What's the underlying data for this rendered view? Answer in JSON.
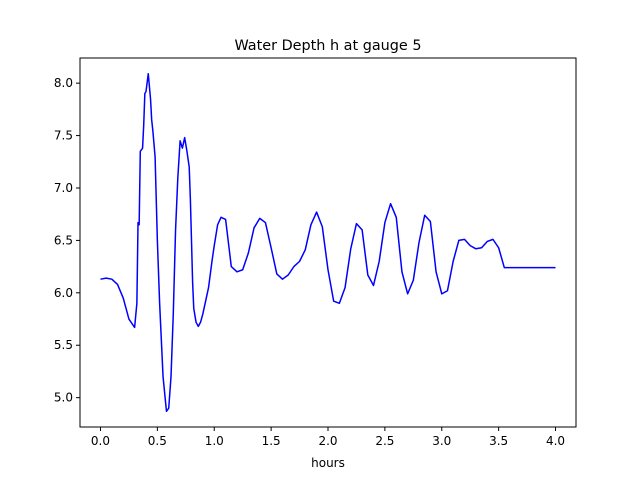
{
  "chart_data": {
    "type": "line",
    "title": "Water Depth h at gauge 5",
    "xlabel": "hours",
    "ylabel": "",
    "xlim": [
      -0.18,
      4.18
    ],
    "ylim": [
      4.72,
      8.24
    ],
    "xticks": [
      0.0,
      0.5,
      1.0,
      1.5,
      2.0,
      2.5,
      3.0,
      3.5,
      4.0
    ],
    "xtick_labels": [
      "0.0",
      "0.5",
      "1.0",
      "1.5",
      "2.0",
      "2.5",
      "3.0",
      "3.5",
      "4.0"
    ],
    "yticks": [
      5.0,
      5.5,
      6.0,
      6.5,
      7.0,
      7.5,
      8.0
    ],
    "ytick_labels": [
      "5.0",
      "5.5",
      "6.0",
      "6.5",
      "7.0",
      "7.5",
      "8.0"
    ],
    "grid": false,
    "line_color": "#0000ff",
    "series": [
      {
        "name": "",
        "x": [
          0.0,
          0.05,
          0.1,
          0.15,
          0.2,
          0.25,
          0.3,
          0.32,
          0.33,
          0.34,
          0.35,
          0.37,
          0.38,
          0.39,
          0.4,
          0.42,
          0.44,
          0.45,
          0.46,
          0.48,
          0.5,
          0.52,
          0.55,
          0.58,
          0.6,
          0.62,
          0.64,
          0.66,
          0.68,
          0.7,
          0.72,
          0.74,
          0.76,
          0.78,
          0.79,
          0.8,
          0.81,
          0.82,
          0.84,
          0.86,
          0.88,
          0.9,
          0.92,
          0.95,
          0.98,
          1.0,
          1.03,
          1.06,
          1.1,
          1.15,
          1.2,
          1.25,
          1.3,
          1.35,
          1.4,
          1.45,
          1.5,
          1.55,
          1.6,
          1.65,
          1.7,
          1.75,
          1.8,
          1.85,
          1.9,
          1.95,
          2.0,
          2.05,
          2.1,
          2.15,
          2.2,
          2.25,
          2.3,
          2.35,
          2.4,
          2.45,
          2.5,
          2.55,
          2.6,
          2.65,
          2.7,
          2.75,
          2.8,
          2.85,
          2.9,
          2.95,
          3.0,
          3.05,
          3.1,
          3.15,
          3.2,
          3.25,
          3.3,
          3.35,
          3.4,
          3.45,
          3.5,
          3.55,
          3.6,
          3.65,
          3.7,
          3.75,
          3.8,
          3.85,
          3.9,
          3.95,
          4.0
        ],
        "y": [
          6.13,
          6.14,
          6.13,
          6.08,
          5.95,
          5.75,
          5.67,
          5.9,
          6.67,
          6.65,
          7.35,
          7.38,
          7.6,
          7.9,
          7.92,
          8.09,
          7.85,
          7.65,
          7.55,
          7.3,
          6.5,
          5.9,
          5.2,
          4.87,
          4.9,
          5.2,
          5.8,
          6.6,
          7.1,
          7.45,
          7.38,
          7.48,
          7.35,
          7.2,
          6.9,
          6.5,
          6.1,
          5.85,
          5.72,
          5.68,
          5.72,
          5.8,
          5.9,
          6.05,
          6.3,
          6.45,
          6.65,
          6.72,
          6.7,
          6.25,
          6.2,
          6.22,
          6.38,
          6.62,
          6.71,
          6.67,
          6.43,
          6.18,
          6.13,
          6.17,
          6.25,
          6.3,
          6.41,
          6.65,
          6.77,
          6.63,
          6.22,
          5.92,
          5.9,
          6.05,
          6.42,
          6.66,
          6.6,
          6.17,
          6.07,
          6.3,
          6.67,
          6.85,
          6.72,
          6.2,
          5.99,
          6.12,
          6.48,
          6.74,
          6.68,
          6.2,
          5.99,
          6.02,
          6.3,
          6.5,
          6.51,
          6.45,
          6.42,
          6.43,
          6.49,
          6.51,
          6.43,
          6.24,
          6.24,
          6.24,
          6.24,
          6.24,
          6.24,
          6.24,
          6.24,
          6.24,
          6.24
        ]
      }
    ]
  }
}
